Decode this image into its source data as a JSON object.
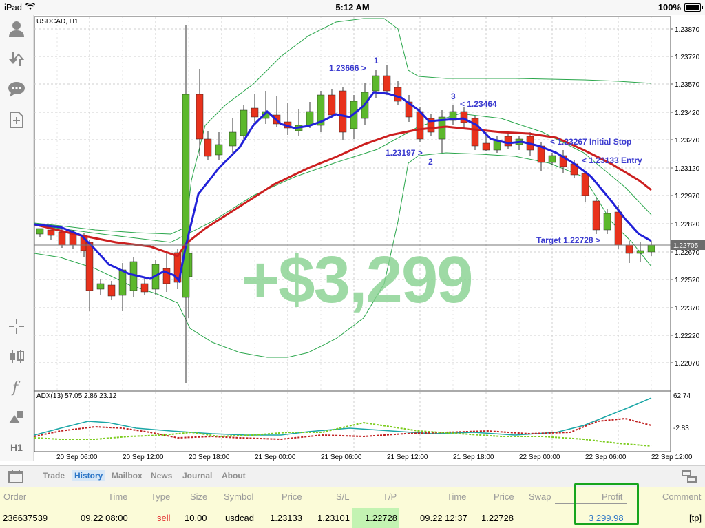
{
  "statusbar": {
    "device": "iPad",
    "time": "5:12 AM",
    "battery": "100%"
  },
  "toolbar": {
    "items": [
      "account-icon",
      "trade-icon",
      "chat-icon",
      "new-order-icon",
      "crosshair-icon",
      "candle-type-icon",
      "indicator-icon",
      "objects-icon"
    ],
    "timeframe": "H1"
  },
  "chart": {
    "symbol_label": "USDCAD, H1",
    "price_labels": [
      "1.23870",
      "1.23720",
      "1.23570",
      "1.23420",
      "1.23270",
      "1.23120",
      "1.22970",
      "1.22820",
      "1.22670",
      "1.22520",
      "1.22370",
      "1.22220",
      "1.22070"
    ],
    "current_price": "1.22705",
    "adx_label": "ADX(13) 57.05 2.86 23.12",
    "adx_max": "62.74",
    "adx_min": "-2.83",
    "time_labels": [
      "20 Sep 06:00",
      "20 Sep 12:00",
      "20 Sep 18:00",
      "21 Sep 00:00",
      "21 Sep 06:00",
      "21 Sep 12:00",
      "21 Sep 18:00",
      "22 Sep 00:00",
      "22 Sep 06:00",
      "22 Sep 12:00"
    ],
    "annotations": {
      "a1": "1.23666 >",
      "n1": "1",
      "a2": "1.23197 >",
      "n2": "2",
      "n3": "3",
      "a3": "< 1.23464",
      "stop": "< 1.23267 Initial Stop",
      "entry": "< 1.23133 Entry",
      "target": "Target 1.22728 >"
    },
    "watermark": "+$3,299",
    "colors": {
      "bull": "#5cb82c",
      "bear": "#e8321c",
      "blue_ma": "#2121d8",
      "red_ma": "#cc1f1f",
      "bands": "#2aa64b",
      "label": "#3b3bcf"
    }
  },
  "tabs": [
    "Trade",
    "History",
    "Mailbox",
    "News",
    "Journal",
    "About"
  ],
  "active_tab": "History",
  "table": {
    "headers": {
      "order": "Order",
      "time1": "Time",
      "type": "Type",
      "size": "Size",
      "symbol": "Symbol",
      "price1": "Price",
      "sl": "S/L",
      "tp": "T/P",
      "time2": "Time",
      "price2": "Price",
      "swap": "Swap",
      "profit": "Profit",
      "comment": "Comment"
    },
    "row": {
      "order": "236637539",
      "time1": "09.22 08:00",
      "type": "sell",
      "size": "10.00",
      "symbol": "usdcad",
      "price1": "1.23133",
      "sl": "1.23101",
      "tp": "1.22728",
      "time2": "09.22 12:37",
      "price2": "1.22728",
      "swap": "",
      "profit": "3 299.98",
      "comment": "[tp]"
    }
  }
}
